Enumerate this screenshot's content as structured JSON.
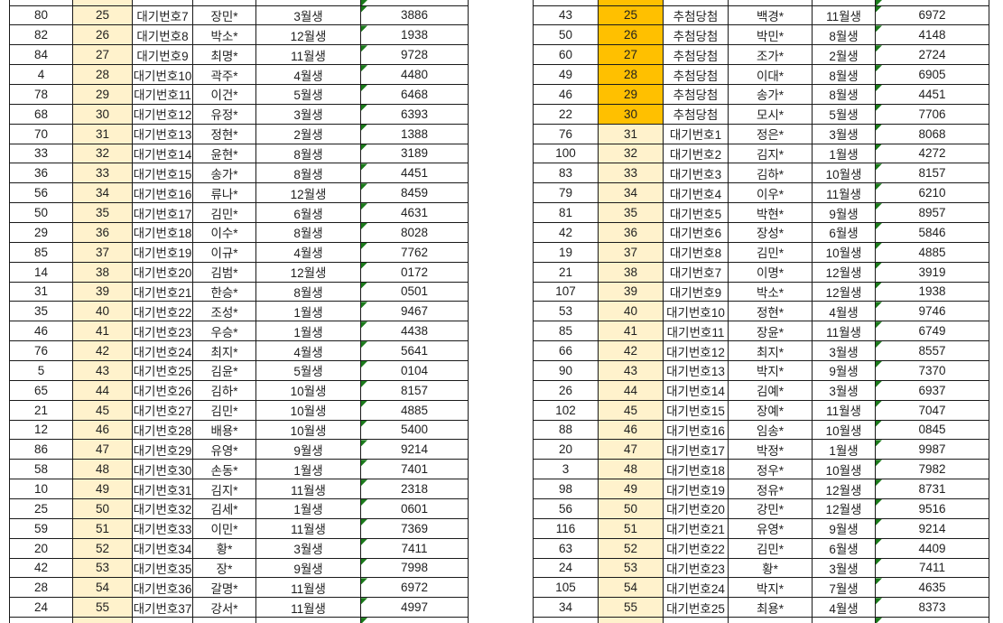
{
  "colors": {
    "highlight_yellow": "#FFF2CC",
    "highlight_orange": "#FFC000",
    "grid_border": "#1a1a1a",
    "text": "#1f1f1f",
    "triangle_green": "#1b7a1b"
  },
  "icons": {
    "number_as_text_indicator": "green-triangle"
  },
  "tables": [
    {
      "id": "left",
      "column_kinds": [
        "entry-number",
        "rank",
        "status",
        "name",
        "birth-month",
        "code"
      ],
      "top_sliver_highlight": "yellow",
      "bottom_sliver_highlight": "yellow",
      "rows": [
        {
          "cells": [
            "80",
            "25",
            "대기번호7",
            "장민*",
            "3월생",
            "3886"
          ],
          "highlight": "yellow"
        },
        {
          "cells": [
            "82",
            "26",
            "대기번호8",
            "박소*",
            "12월생",
            "1938"
          ],
          "highlight": "yellow"
        },
        {
          "cells": [
            "84",
            "27",
            "대기번호9",
            "최명*",
            "11월생",
            "9728"
          ],
          "highlight": "yellow"
        },
        {
          "cells": [
            "4",
            "28",
            "대기번호10",
            "곽주*",
            "4월생",
            "4480"
          ],
          "highlight": "yellow"
        },
        {
          "cells": [
            "78",
            "29",
            "대기번호11",
            "이건*",
            "5월생",
            "6468"
          ],
          "highlight": "yellow"
        },
        {
          "cells": [
            "68",
            "30",
            "대기번호12",
            "유정*",
            "3월생",
            "6393"
          ],
          "highlight": "yellow"
        },
        {
          "cells": [
            "70",
            "31",
            "대기번호13",
            "정현*",
            "2월생",
            "1388"
          ],
          "highlight": "yellow"
        },
        {
          "cells": [
            "33",
            "32",
            "대기번호14",
            "윤현*",
            "8월생",
            "3189"
          ],
          "highlight": "yellow"
        },
        {
          "cells": [
            "36",
            "33",
            "대기번호15",
            "송가*",
            "8월생",
            "4451"
          ],
          "highlight": "yellow"
        },
        {
          "cells": [
            "56",
            "34",
            "대기번호16",
            "류나*",
            "12월생",
            "8459"
          ],
          "highlight": "yellow"
        },
        {
          "cells": [
            "50",
            "35",
            "대기번호17",
            "김민*",
            "6월생",
            "4631"
          ],
          "highlight": "yellow"
        },
        {
          "cells": [
            "29",
            "36",
            "대기번호18",
            "이수*",
            "8월생",
            "8028"
          ],
          "highlight": "yellow"
        },
        {
          "cells": [
            "85",
            "37",
            "대기번호19",
            "이규*",
            "4월생",
            "7762"
          ],
          "highlight": "yellow"
        },
        {
          "cells": [
            "14",
            "38",
            "대기번호20",
            "김범*",
            "12월생",
            "0172"
          ],
          "highlight": "yellow"
        },
        {
          "cells": [
            "31",
            "39",
            "대기번호21",
            "한승*",
            "8월생",
            "0501"
          ],
          "highlight": "yellow"
        },
        {
          "cells": [
            "35",
            "40",
            "대기번호22",
            "조성*",
            "1월생",
            "9467"
          ],
          "highlight": "yellow"
        },
        {
          "cells": [
            "46",
            "41",
            "대기번호23",
            "우승*",
            "1월생",
            "4438"
          ],
          "highlight": "yellow"
        },
        {
          "cells": [
            "76",
            "42",
            "대기번호24",
            "최지*",
            "4월생",
            "5641"
          ],
          "highlight": "yellow"
        },
        {
          "cells": [
            "5",
            "43",
            "대기번호25",
            "김윤*",
            "5월생",
            "0104"
          ],
          "highlight": "yellow"
        },
        {
          "cells": [
            "65",
            "44",
            "대기번호26",
            "김하*",
            "10월생",
            "8157"
          ],
          "highlight": "yellow"
        },
        {
          "cells": [
            "21",
            "45",
            "대기번호27",
            "김민*",
            "10월생",
            "4885"
          ],
          "highlight": "yellow"
        },
        {
          "cells": [
            "12",
            "46",
            "대기번호28",
            "배용*",
            "10월생",
            "5400"
          ],
          "highlight": "yellow"
        },
        {
          "cells": [
            "86",
            "47",
            "대기번호29",
            "유영*",
            "9월생",
            "9214"
          ],
          "highlight": "yellow"
        },
        {
          "cells": [
            "58",
            "48",
            "대기번호30",
            "손동*",
            "1월생",
            "7401"
          ],
          "highlight": "yellow"
        },
        {
          "cells": [
            "10",
            "49",
            "대기번호31",
            "김지*",
            "11월생",
            "2318"
          ],
          "highlight": "yellow"
        },
        {
          "cells": [
            "25",
            "50",
            "대기번호32",
            "김세*",
            "1월생",
            "0601"
          ],
          "highlight": "yellow"
        },
        {
          "cells": [
            "59",
            "51",
            "대기번호33",
            "이민*",
            "11월생",
            "7369"
          ],
          "highlight": "yellow"
        },
        {
          "cells": [
            "20",
            "52",
            "대기번호34",
            "황*",
            "3월생",
            "7411"
          ],
          "highlight": "yellow"
        },
        {
          "cells": [
            "42",
            "53",
            "대기번호35",
            "장*",
            "9월생",
            "7998"
          ],
          "highlight": "yellow"
        },
        {
          "cells": [
            "28",
            "54",
            "대기번호36",
            "갈명*",
            "11월생",
            "6972"
          ],
          "highlight": "yellow"
        },
        {
          "cells": [
            "24",
            "55",
            "대기번호37",
            "강서*",
            "11월생",
            "4997"
          ],
          "highlight": "yellow"
        }
      ]
    },
    {
      "id": "right",
      "column_kinds": [
        "entry-number",
        "rank",
        "status",
        "name",
        "birth-month",
        "code"
      ],
      "top_sliver_highlight": "orange",
      "bottom_sliver_highlight": "yellow",
      "rows": [
        {
          "cells": [
            "43",
            "25",
            "추첨당첨",
            "백경*",
            "11월생",
            "6972"
          ],
          "highlight": "orange"
        },
        {
          "cells": [
            "50",
            "26",
            "추첨당첨",
            "박민*",
            "8월생",
            "4148"
          ],
          "highlight": "orange"
        },
        {
          "cells": [
            "60",
            "27",
            "추첨당첨",
            "조가*",
            "2월생",
            "2724"
          ],
          "highlight": "orange"
        },
        {
          "cells": [
            "49",
            "28",
            "추첨당첨",
            "이대*",
            "8월생",
            "6905"
          ],
          "highlight": "orange"
        },
        {
          "cells": [
            "46",
            "29",
            "추첨당첨",
            "송가*",
            "8월생",
            "4451"
          ],
          "highlight": "orange"
        },
        {
          "cells": [
            "22",
            "30",
            "추첨당첨",
            "모시*",
            "5월생",
            "7706"
          ],
          "highlight": "orange"
        },
        {
          "cells": [
            "76",
            "31",
            "대기번호1",
            "정은*",
            "3월생",
            "8068"
          ],
          "highlight": "yellow"
        },
        {
          "cells": [
            "100",
            "32",
            "대기번호2",
            "김지*",
            "1월생",
            "4272"
          ],
          "highlight": "yellow"
        },
        {
          "cells": [
            "83",
            "33",
            "대기번호3",
            "김하*",
            "10월생",
            "8157"
          ],
          "highlight": "yellow"
        },
        {
          "cells": [
            "79",
            "34",
            "대기번호4",
            "이우*",
            "11월생",
            "6210"
          ],
          "highlight": "yellow"
        },
        {
          "cells": [
            "81",
            "35",
            "대기번호5",
            "박현*",
            "9월생",
            "8957"
          ],
          "highlight": "yellow"
        },
        {
          "cells": [
            "42",
            "36",
            "대기번호6",
            "장성*",
            "6월생",
            "5846"
          ],
          "highlight": "yellow"
        },
        {
          "cells": [
            "19",
            "37",
            "대기번호8",
            "김민*",
            "10월생",
            "4885"
          ],
          "highlight": "yellow"
        },
        {
          "cells": [
            "21",
            "38",
            "대기번호7",
            "이명*",
            "12월생",
            "3919"
          ],
          "highlight": "yellow"
        },
        {
          "cells": [
            "107",
            "39",
            "대기번호9",
            "박소*",
            "12월생",
            "1938"
          ],
          "highlight": "yellow"
        },
        {
          "cells": [
            "53",
            "40",
            "대기번호10",
            "정현*",
            "4월생",
            "9746"
          ],
          "highlight": "yellow"
        },
        {
          "cells": [
            "85",
            "41",
            "대기번호11",
            "장윤*",
            "11월생",
            "6749"
          ],
          "highlight": "yellow"
        },
        {
          "cells": [
            "66",
            "42",
            "대기번호12",
            "최지*",
            "3월생",
            "8557"
          ],
          "highlight": "yellow"
        },
        {
          "cells": [
            "90",
            "43",
            "대기번호13",
            "박지*",
            "9월생",
            "7370"
          ],
          "highlight": "yellow"
        },
        {
          "cells": [
            "26",
            "44",
            "대기번호14",
            "김예*",
            "3월생",
            "6937"
          ],
          "highlight": "yellow"
        },
        {
          "cells": [
            "102",
            "45",
            "대기번호15",
            "장예*",
            "11월생",
            "7047"
          ],
          "highlight": "yellow"
        },
        {
          "cells": [
            "88",
            "46",
            "대기번호16",
            "임송*",
            "10월생",
            "0845"
          ],
          "highlight": "yellow"
        },
        {
          "cells": [
            "20",
            "47",
            "대기번호17",
            "박정*",
            "1월생",
            "9987"
          ],
          "highlight": "yellow"
        },
        {
          "cells": [
            "3",
            "48",
            "대기번호18",
            "정우*",
            "10월생",
            "7982"
          ],
          "highlight": "yellow"
        },
        {
          "cells": [
            "98",
            "49",
            "대기번호19",
            "정유*",
            "12월생",
            "8731"
          ],
          "highlight": "yellow"
        },
        {
          "cells": [
            "56",
            "50",
            "대기번호20",
            "강민*",
            "12월생",
            "9516"
          ],
          "highlight": "yellow"
        },
        {
          "cells": [
            "116",
            "51",
            "대기번호21",
            "유영*",
            "9월생",
            "9214"
          ],
          "highlight": "yellow"
        },
        {
          "cells": [
            "63",
            "52",
            "대기번호22",
            "김민*",
            "6월생",
            "4409"
          ],
          "highlight": "yellow"
        },
        {
          "cells": [
            "24",
            "53",
            "대기번호23",
            "황*",
            "3월생",
            "7411"
          ],
          "highlight": "yellow"
        },
        {
          "cells": [
            "105",
            "54",
            "대기번호24",
            "박지*",
            "7월생",
            "4635"
          ],
          "highlight": "yellow"
        },
        {
          "cells": [
            "34",
            "55",
            "대기번호25",
            "최용*",
            "4월생",
            "8373"
          ],
          "highlight": "yellow"
        }
      ]
    }
  ]
}
